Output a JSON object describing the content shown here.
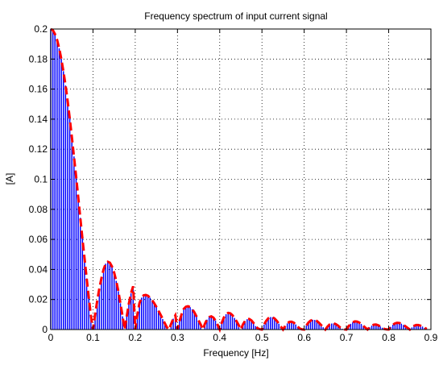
{
  "chart_data": {
    "type": "bar",
    "title": "Frequency spectrum of input current signal",
    "xlabel": "Frequency [Hz]",
    "ylabel": "[A]",
    "xlim": [
      0,
      0.9
    ],
    "ylim": [
      0,
      0.2
    ],
    "xticks": [
      "0",
      "0.1",
      "0.2",
      "0.3",
      "0.4",
      "0.5",
      "0.6",
      "0.7",
      "0.8",
      "0.9"
    ],
    "yticks": [
      "0",
      "0.02",
      "0.04",
      "0.06",
      "0.08",
      "0.1",
      "0.12",
      "0.14",
      "0.16",
      "0.18",
      "0.2"
    ],
    "grid": true,
    "grid_style": "dotted",
    "bar_color": "#0000ff",
    "envelope_color": "#ff0000",
    "x": [
      0,
      0.005,
      0.01,
      0.015,
      0.02,
      0.025,
      0.03,
      0.035,
      0.04,
      0.045,
      0.05,
      0.055,
      0.06,
      0.065,
      0.07,
      0.075,
      0.08,
      0.085,
      0.09,
      0.095,
      0.1,
      0.105,
      0.11,
      0.115,
      0.12,
      0.125,
      0.13,
      0.135,
      0.14,
      0.145,
      0.15,
      0.155,
      0.16,
      0.165,
      0.17,
      0.175,
      0.18,
      0.185,
      0.19,
      0.195,
      0.2,
      0.205,
      0.21,
      0.215,
      0.22,
      0.225,
      0.23,
      0.235,
      0.24,
      0.245,
      0.25,
      0.255,
      0.26,
      0.265,
      0.27,
      0.275,
      0.28,
      0.285,
      0.29,
      0.295,
      0.3,
      0.305,
      0.31,
      0.315,
      0.32,
      0.325,
      0.33,
      0.335,
      0.34,
      0.345,
      0.35,
      0.355,
      0.36,
      0.365,
      0.37,
      0.375,
      0.38,
      0.385,
      0.39,
      0.395,
      0.4,
      0.405,
      0.41,
      0.415,
      0.42,
      0.425,
      0.43,
      0.435,
      0.44,
      0.445,
      0.45,
      0.455,
      0.46,
      0.465,
      0.47,
      0.475,
      0.48,
      0.485,
      0.49,
      0.495,
      0.5,
      0.505,
      0.51,
      0.515,
      0.52,
      0.525,
      0.53,
      0.535,
      0.54,
      0.545,
      0.55,
      0.555,
      0.56,
      0.565,
      0.57,
      0.575,
      0.58,
      0.585,
      0.59,
      0.595,
      0.6,
      0.605,
      0.61,
      0.615,
      0.62,
      0.625,
      0.63,
      0.635,
      0.64,
      0.645,
      0.65,
      0.655,
      0.66,
      0.665,
      0.67,
      0.675,
      0.68,
      0.685,
      0.69,
      0.695,
      0.7,
      0.705,
      0.71,
      0.715,
      0.72,
      0.725,
      0.73,
      0.735,
      0.74,
      0.745,
      0.75,
      0.755,
      0.76,
      0.765,
      0.77,
      0.775,
      0.78,
      0.785,
      0.79,
      0.795,
      0.8,
      0.805,
      0.81,
      0.815,
      0.82,
      0.825,
      0.83,
      0.835,
      0.84,
      0.845,
      0.85,
      0.855,
      0.86,
      0.865,
      0.87,
      0.875,
      0.88,
      0.885,
      0.89
    ],
    "series": [
      {
        "values": [
          0.2,
          0.1992,
          0.1967,
          0.1927,
          0.1871,
          0.1801,
          0.1719,
          0.1624,
          0.1519,
          0.1404,
          0.1281,
          0.1152,
          0.1018,
          0.0881,
          0.0743,
          0.0606,
          0.0471,
          0.034,
          0.0214,
          0.0095,
          0.0,
          0.01,
          0.0191,
          0.0272,
          0.0341,
          0.04,
          0.0438,
          0.0451,
          0.0445,
          0.042,
          0.0379,
          0.0324,
          0.0255,
          0.0175,
          0.0088,
          0.0,
          0.0089,
          0.0172,
          0.0241,
          0.0288,
          0.0,
          0.0098,
          0.0175,
          0.0212,
          0.0228,
          0.023,
          0.0225,
          0.0212,
          0.0195,
          0.0175,
          0.0152,
          0.0126,
          0.0098,
          0.007,
          0.0042,
          0.0015,
          0.0,
          0.0038,
          0.0072,
          0.0095,
          0.0,
          0.0058,
          0.0104,
          0.0138,
          0.0152,
          0.0155,
          0.0149,
          0.0135,
          0.0114,
          0.0088,
          0.006,
          0.0033,
          0.0,
          0.0038,
          0.0066,
          0.0083,
          0.0088,
          0.008,
          0.006,
          0.0031,
          0.0,
          0.0046,
          0.0081,
          0.0102,
          0.0111,
          0.0108,
          0.0096,
          0.0077,
          0.0054,
          0.0029,
          0.0,
          0.0034,
          0.0057,
          0.0069,
          0.007,
          0.0061,
          0.0044,
          0.0023,
          0.0008,
          0.0002,
          0.0,
          0.0033,
          0.0058,
          0.0075,
          0.0083,
          0.0082,
          0.0073,
          0.0058,
          0.0039,
          0.0019,
          0.0,
          0.0024,
          0.0041,
          0.0051,
          0.0052,
          0.0046,
          0.0034,
          0.0018,
          0.0006,
          0.0001,
          0.0,
          0.0026,
          0.0046,
          0.0059,
          0.0065,
          0.0064,
          0.0057,
          0.0045,
          0.003,
          0.0015,
          0.0,
          0.0019,
          0.0033,
          0.004,
          0.0041,
          0.0036,
          0.0027,
          0.0014,
          0.0005,
          0.0001,
          0.0,
          0.0022,
          0.0038,
          0.0049,
          0.0054,
          0.0053,
          0.0047,
          0.0037,
          0.0025,
          0.0012,
          0.0,
          0.0015,
          0.0026,
          0.0032,
          0.0033,
          0.0029,
          0.0021,
          0.0012,
          0.0004,
          0.0001,
          0.0,
          0.0018,
          0.0032,
          0.0041,
          0.0045,
          0.0044,
          0.0039,
          0.0031,
          0.0021,
          0.001,
          0.0,
          0.0014,
          0.0024,
          0.003,
          0.003,
          0.0026,
          0.002,
          0.0011,
          0.0004
        ]
      }
    ]
  }
}
